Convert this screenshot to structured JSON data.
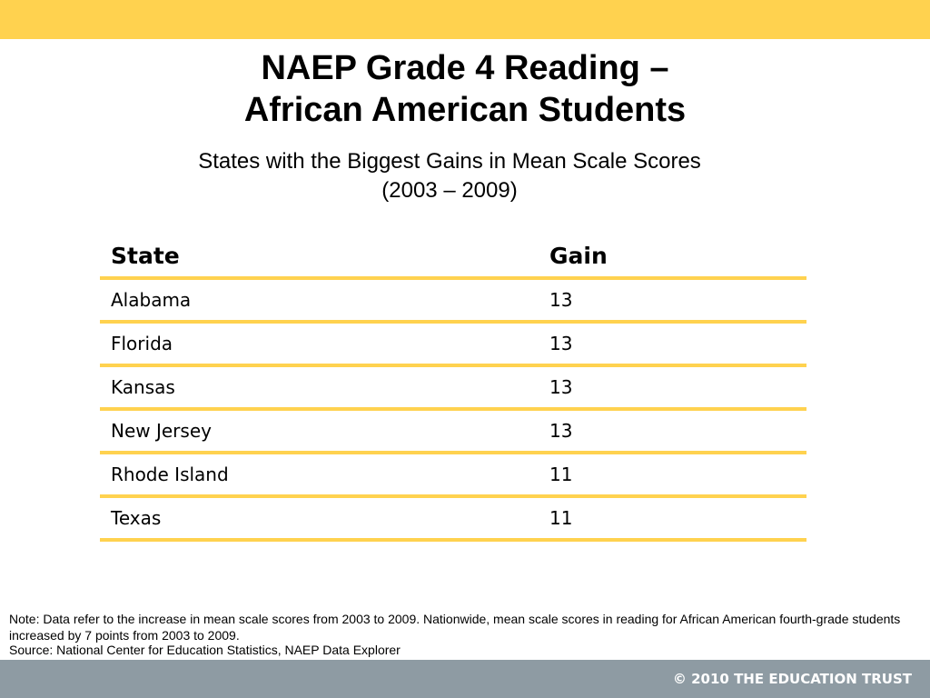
{
  "slide": {
    "title_line1": "NAEP Grade 4 Reading –",
    "title_line2": "African American Students",
    "subtitle_line1": "States with the Biggest Gains in Mean Scale Scores",
    "subtitle_line2": "(2003 – 2009)"
  },
  "table": {
    "headers": {
      "state": "State",
      "gain": "Gain"
    },
    "rows": [
      {
        "state": "Alabama",
        "gain": "13"
      },
      {
        "state": "Florida",
        "gain": "13"
      },
      {
        "state": "Kansas",
        "gain": "13"
      },
      {
        "state": "New Jersey",
        "gain": "13"
      },
      {
        "state": "Rhode Island",
        "gain": "11"
      },
      {
        "state": "Texas",
        "gain": "11"
      }
    ]
  },
  "footer": {
    "note": "Note: Data refer to the increase in mean scale scores from 2003 to 2009. Nationwide, mean scale scores in reading for African American fourth-grade students increased by 7 points from 2003 to 2009.",
    "source": "Source: National Center for Education Statistics, NAEP Data Explorer",
    "copyright": "© 2010 THE EDUCATION TRUST"
  },
  "colors": {
    "accent": "#ffd24f",
    "footer_bar": "#8e9ba3"
  }
}
